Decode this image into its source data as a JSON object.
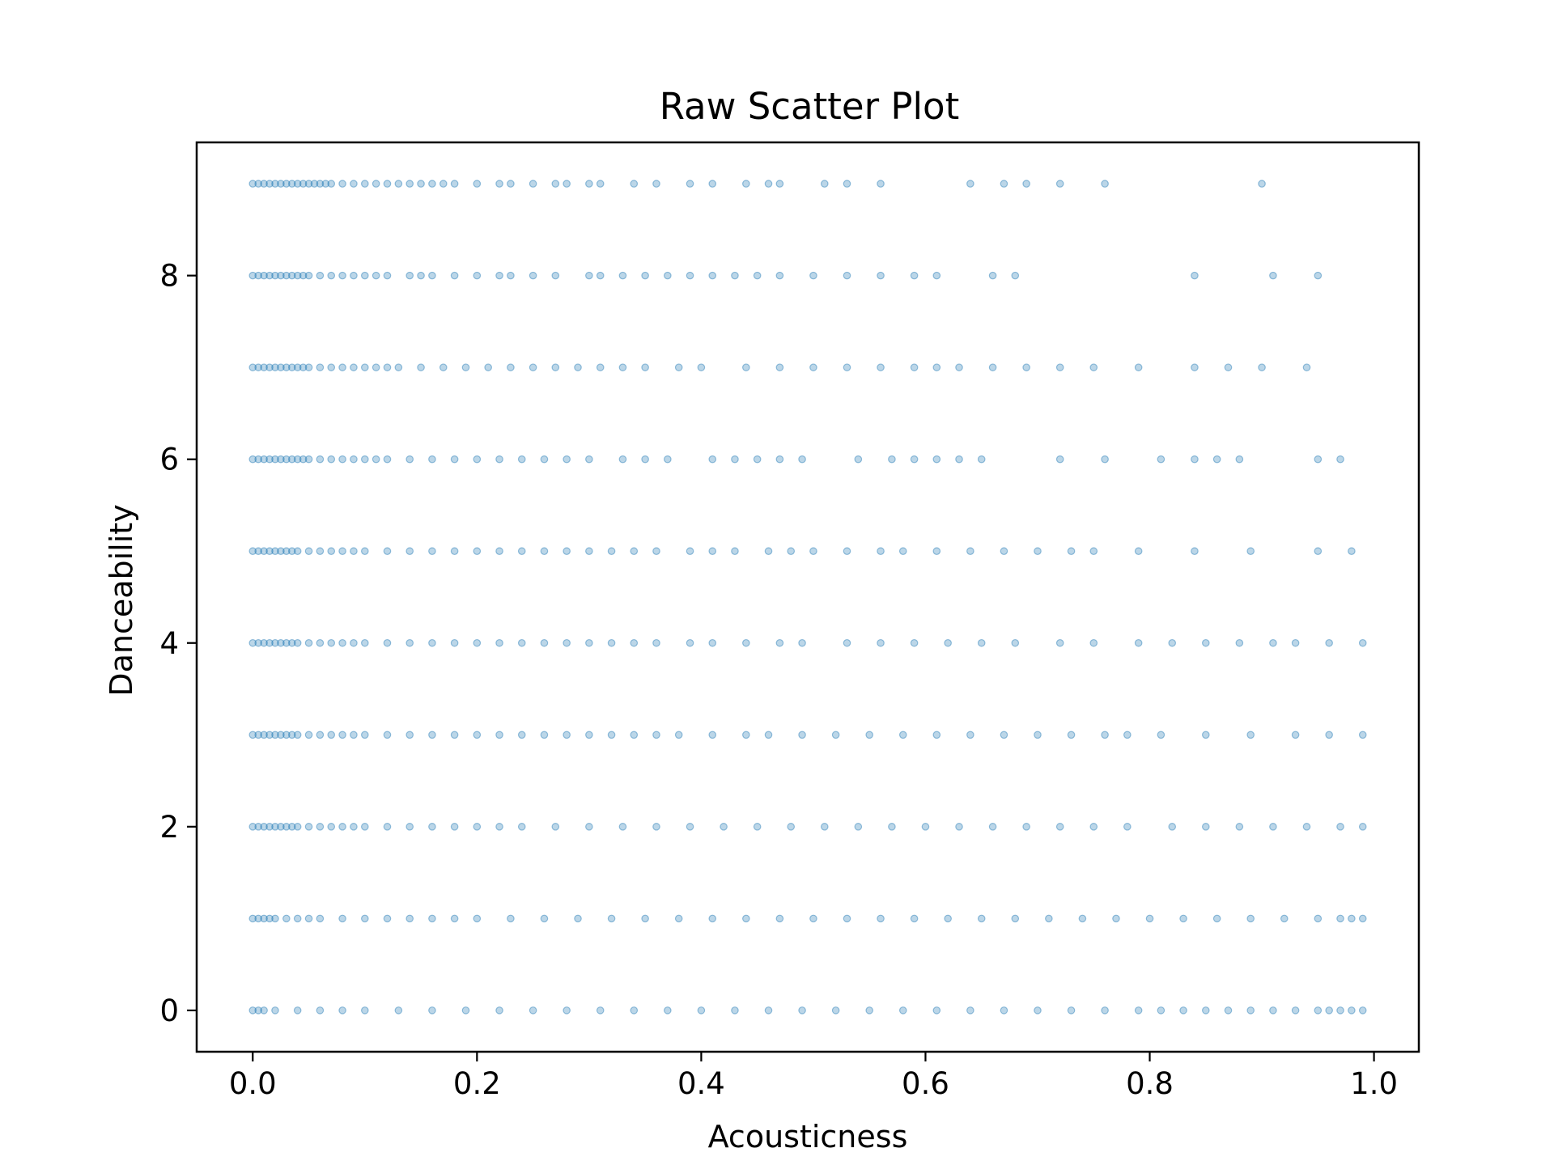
{
  "chart_data": {
    "type": "scatter",
    "title": "Raw Scatter Plot",
    "xlabel": "Acousticness",
    "ylabel": "Danceability",
    "xlim": [
      -0.05,
      1.04
    ],
    "ylim": [
      -0.45,
      9.45
    ],
    "xticks": [
      "0.0",
      "0.2",
      "0.4",
      "0.6",
      "0.8",
      "1.0"
    ],
    "yticks": [
      "0",
      "2",
      "4",
      "6",
      "8"
    ],
    "grid": false,
    "point_color": "#1f77b4",
    "point_alpha": 0.3,
    "series": [
      {
        "y": 9,
        "x": [
          0.0,
          0.005,
          0.01,
          0.015,
          0.02,
          0.025,
          0.03,
          0.035,
          0.04,
          0.045,
          0.05,
          0.055,
          0.06,
          0.065,
          0.07,
          0.08,
          0.09,
          0.1,
          0.11,
          0.12,
          0.13,
          0.14,
          0.15,
          0.16,
          0.17,
          0.18,
          0.2,
          0.22,
          0.23,
          0.25,
          0.27,
          0.28,
          0.3,
          0.31,
          0.34,
          0.36,
          0.39,
          0.41,
          0.44,
          0.46,
          0.47,
          0.51,
          0.53,
          0.56,
          0.64,
          0.67,
          0.69,
          0.72,
          0.76,
          0.9
        ]
      },
      {
        "y": 8,
        "x": [
          0.0,
          0.005,
          0.01,
          0.015,
          0.02,
          0.025,
          0.03,
          0.035,
          0.04,
          0.045,
          0.05,
          0.06,
          0.07,
          0.08,
          0.09,
          0.1,
          0.11,
          0.12,
          0.14,
          0.15,
          0.16,
          0.18,
          0.2,
          0.22,
          0.23,
          0.25,
          0.27,
          0.3,
          0.31,
          0.33,
          0.35,
          0.37,
          0.39,
          0.41,
          0.43,
          0.45,
          0.47,
          0.5,
          0.53,
          0.56,
          0.59,
          0.61,
          0.66,
          0.68,
          0.84,
          0.91,
          0.95
        ]
      },
      {
        "y": 7,
        "x": [
          0.0,
          0.005,
          0.01,
          0.015,
          0.02,
          0.025,
          0.03,
          0.035,
          0.04,
          0.045,
          0.05,
          0.06,
          0.07,
          0.08,
          0.09,
          0.1,
          0.11,
          0.12,
          0.13,
          0.15,
          0.17,
          0.19,
          0.21,
          0.23,
          0.25,
          0.27,
          0.29,
          0.31,
          0.33,
          0.35,
          0.38,
          0.4,
          0.44,
          0.47,
          0.5,
          0.53,
          0.56,
          0.59,
          0.61,
          0.63,
          0.66,
          0.69,
          0.72,
          0.75,
          0.79,
          0.84,
          0.87,
          0.9,
          0.94
        ]
      },
      {
        "y": 6,
        "x": [
          0.0,
          0.005,
          0.01,
          0.015,
          0.02,
          0.025,
          0.03,
          0.035,
          0.04,
          0.045,
          0.05,
          0.06,
          0.07,
          0.08,
          0.09,
          0.1,
          0.11,
          0.12,
          0.14,
          0.16,
          0.18,
          0.2,
          0.22,
          0.24,
          0.26,
          0.28,
          0.3,
          0.33,
          0.35,
          0.37,
          0.41,
          0.43,
          0.45,
          0.47,
          0.49,
          0.54,
          0.57,
          0.59,
          0.61,
          0.63,
          0.65,
          0.72,
          0.76,
          0.81,
          0.84,
          0.86,
          0.88,
          0.95,
          0.97
        ]
      },
      {
        "y": 5,
        "x": [
          0.0,
          0.005,
          0.01,
          0.015,
          0.02,
          0.025,
          0.03,
          0.035,
          0.04,
          0.05,
          0.06,
          0.07,
          0.08,
          0.09,
          0.1,
          0.12,
          0.14,
          0.16,
          0.18,
          0.2,
          0.22,
          0.24,
          0.26,
          0.28,
          0.3,
          0.32,
          0.34,
          0.36,
          0.39,
          0.41,
          0.43,
          0.46,
          0.48,
          0.5,
          0.53,
          0.56,
          0.58,
          0.61,
          0.64,
          0.67,
          0.7,
          0.73,
          0.75,
          0.79,
          0.84,
          0.89,
          0.95,
          0.98
        ]
      },
      {
        "y": 4,
        "x": [
          0.0,
          0.005,
          0.01,
          0.015,
          0.02,
          0.025,
          0.03,
          0.035,
          0.04,
          0.05,
          0.06,
          0.07,
          0.08,
          0.09,
          0.1,
          0.12,
          0.14,
          0.16,
          0.18,
          0.2,
          0.22,
          0.24,
          0.26,
          0.28,
          0.3,
          0.32,
          0.34,
          0.36,
          0.39,
          0.41,
          0.44,
          0.47,
          0.49,
          0.53,
          0.56,
          0.59,
          0.62,
          0.65,
          0.68,
          0.72,
          0.75,
          0.79,
          0.82,
          0.85,
          0.88,
          0.91,
          0.93,
          0.96,
          0.99
        ]
      },
      {
        "y": 3,
        "x": [
          0.0,
          0.005,
          0.01,
          0.015,
          0.02,
          0.025,
          0.03,
          0.035,
          0.04,
          0.05,
          0.06,
          0.07,
          0.08,
          0.09,
          0.1,
          0.12,
          0.14,
          0.16,
          0.18,
          0.2,
          0.22,
          0.24,
          0.26,
          0.28,
          0.3,
          0.32,
          0.34,
          0.36,
          0.38,
          0.41,
          0.44,
          0.46,
          0.49,
          0.52,
          0.55,
          0.58,
          0.61,
          0.64,
          0.67,
          0.7,
          0.73,
          0.76,
          0.78,
          0.81,
          0.85,
          0.89,
          0.93,
          0.96,
          0.99
        ]
      },
      {
        "y": 2,
        "x": [
          0.0,
          0.005,
          0.01,
          0.015,
          0.02,
          0.025,
          0.03,
          0.035,
          0.04,
          0.05,
          0.06,
          0.07,
          0.08,
          0.09,
          0.1,
          0.12,
          0.14,
          0.16,
          0.18,
          0.2,
          0.22,
          0.24,
          0.27,
          0.3,
          0.33,
          0.36,
          0.39,
          0.42,
          0.45,
          0.48,
          0.51,
          0.54,
          0.57,
          0.6,
          0.63,
          0.66,
          0.69,
          0.72,
          0.75,
          0.78,
          0.82,
          0.85,
          0.88,
          0.91,
          0.94,
          0.97,
          0.99
        ]
      },
      {
        "y": 1,
        "x": [
          0.0,
          0.005,
          0.01,
          0.015,
          0.02,
          0.03,
          0.04,
          0.05,
          0.06,
          0.08,
          0.1,
          0.12,
          0.14,
          0.16,
          0.18,
          0.2,
          0.23,
          0.26,
          0.29,
          0.32,
          0.35,
          0.38,
          0.41,
          0.44,
          0.47,
          0.5,
          0.53,
          0.56,
          0.59,
          0.62,
          0.65,
          0.68,
          0.71,
          0.74,
          0.77,
          0.8,
          0.83,
          0.86,
          0.89,
          0.92,
          0.95,
          0.97,
          0.98,
          0.99
        ]
      },
      {
        "y": 0,
        "x": [
          0.0,
          0.005,
          0.01,
          0.02,
          0.04,
          0.06,
          0.08,
          0.1,
          0.13,
          0.16,
          0.19,
          0.22,
          0.25,
          0.28,
          0.31,
          0.34,
          0.37,
          0.4,
          0.43,
          0.46,
          0.49,
          0.52,
          0.55,
          0.58,
          0.61,
          0.64,
          0.67,
          0.7,
          0.73,
          0.76,
          0.79,
          0.81,
          0.83,
          0.85,
          0.87,
          0.89,
          0.91,
          0.93,
          0.95,
          0.96,
          0.97,
          0.98,
          0.99
        ]
      }
    ]
  }
}
